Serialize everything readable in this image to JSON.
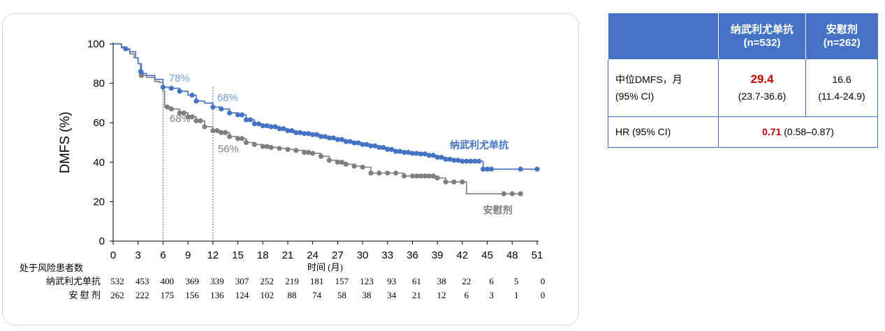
{
  "colors": {
    "treatment": "#4472c4",
    "placebo": "#7f7f7f",
    "treatment_annot": "#6fa0d8",
    "placebo_annot": "#808080",
    "header_bg": "#4472c4",
    "highlight": "#c00000"
  },
  "chart_data": {
    "type": "line",
    "subtype": "kaplan-meier",
    "ylabel": "DMFS (%)",
    "xlabel": "时间 (月)",
    "ylim": [
      0,
      100
    ],
    "xlim": [
      0,
      51
    ],
    "yticks": [
      0,
      20,
      40,
      60,
      80,
      100
    ],
    "xticks": [
      0,
      3,
      6,
      9,
      12,
      15,
      18,
      21,
      24,
      27,
      30,
      33,
      36,
      39,
      42,
      45,
      48,
      51
    ],
    "reference_lines_x": [
      6,
      12
    ],
    "series": [
      {
        "name": "纳武利尤单抗",
        "color_key": "treatment",
        "points": [
          [
            0,
            100
          ],
          [
            1,
            98.5
          ],
          [
            1.5,
            97.5
          ],
          [
            2,
            96
          ],
          [
            2.7,
            93
          ],
          [
            3,
            90
          ],
          [
            3.3,
            86
          ],
          [
            3.6,
            85
          ],
          [
            4,
            84
          ],
          [
            5,
            82
          ],
          [
            6,
            78
          ],
          [
            7,
            77.5
          ],
          [
            8,
            76
          ],
          [
            9,
            74
          ],
          [
            10,
            71
          ],
          [
            11,
            70
          ],
          [
            12,
            68
          ],
          [
            13,
            67
          ],
          [
            14,
            65
          ],
          [
            15,
            64
          ],
          [
            16,
            61.5
          ],
          [
            17,
            59.5
          ],
          [
            18,
            58.5
          ],
          [
            19,
            58
          ],
          [
            20,
            57
          ],
          [
            21,
            56
          ],
          [
            22,
            55
          ],
          [
            23,
            54.5
          ],
          [
            24,
            54
          ],
          [
            25,
            53
          ],
          [
            26,
            52.3
          ],
          [
            27,
            51.5
          ],
          [
            28,
            50.5
          ],
          [
            29,
            49.8
          ],
          [
            30,
            49
          ],
          [
            31,
            48.3
          ],
          [
            32,
            47.5
          ],
          [
            33,
            46.5
          ],
          [
            34,
            45.5
          ],
          [
            35,
            45
          ],
          [
            36,
            44.5
          ],
          [
            37,
            44.2
          ],
          [
            38,
            43.5
          ],
          [
            39,
            42.5
          ],
          [
            40,
            41.5
          ],
          [
            41,
            41
          ],
          [
            42,
            40.5
          ],
          [
            43,
            40.5
          ],
          [
            44,
            40.5
          ],
          [
            44.5,
            40.5
          ],
          [
            44.5,
            36.5
          ],
          [
            47,
            36.5
          ],
          [
            51,
            36.5
          ]
        ],
        "censor_x": [
          1.5,
          3.3,
          6,
          7,
          8,
          9.5,
          10,
          12,
          13,
          14,
          15,
          15.5,
          16,
          16.5,
          17,
          17.5,
          18,
          18.5,
          19,
          19.5,
          20,
          20.5,
          21,
          21.5,
          22,
          22.5,
          23,
          23.5,
          24,
          24.5,
          25,
          25.5,
          26,
          26.5,
          27,
          27.5,
          28,
          28.5,
          29,
          29.5,
          30,
          30.5,
          31,
          31.5,
          32,
          32.5,
          33,
          33.5,
          34,
          34.5,
          35,
          35.5,
          36,
          36.5,
          37,
          37.5,
          38,
          38.5,
          39,
          39.5,
          40,
          40.5,
          41,
          41.5,
          42,
          42.5,
          43,
          43.5,
          44,
          44.5,
          45,
          45.5,
          49,
          51
        ]
      },
      {
        "name": "安慰剂",
        "color_key": "placebo",
        "points": [
          [
            0,
            100
          ],
          [
            1,
            98
          ],
          [
            1.5,
            97
          ],
          [
            2,
            95
          ],
          [
            2.5,
            93
          ],
          [
            3,
            90
          ],
          [
            3.4,
            84
          ],
          [
            4,
            83
          ],
          [
            5,
            81
          ],
          [
            5.5,
            80.5
          ],
          [
            6,
            76
          ],
          [
            6.2,
            68
          ],
          [
            7,
            67
          ],
          [
            8,
            65
          ],
          [
            9,
            63
          ],
          [
            10,
            61
          ],
          [
            11,
            58
          ],
          [
            12,
            56
          ],
          [
            13,
            55
          ],
          [
            14,
            53
          ],
          [
            15,
            52
          ],
          [
            16,
            50
          ],
          [
            17,
            49
          ],
          [
            18,
            48
          ],
          [
            19,
            47.5
          ],
          [
            20,
            47
          ],
          [
            21,
            46.5
          ],
          [
            22,
            46
          ],
          [
            23,
            45
          ],
          [
            24,
            44.5
          ],
          [
            25,
            43
          ],
          [
            26,
            41
          ],
          [
            27,
            40
          ],
          [
            28,
            39
          ],
          [
            29,
            38
          ],
          [
            30,
            37.5
          ],
          [
            31,
            34.5
          ],
          [
            32,
            34.5
          ],
          [
            33,
            34.5
          ],
          [
            34,
            34.5
          ],
          [
            35,
            33
          ],
          [
            36,
            33
          ],
          [
            37,
            33
          ],
          [
            38,
            33
          ],
          [
            39,
            32
          ],
          [
            40,
            30
          ],
          [
            41,
            30
          ],
          [
            42,
            30
          ],
          [
            42.5,
            30
          ],
          [
            42.5,
            24
          ],
          [
            44,
            24
          ],
          [
            46,
            24
          ],
          [
            49,
            24
          ]
        ],
        "censor_x": [
          3.4,
          6.5,
          7,
          8,
          8.5,
          9,
          9.5,
          10,
          10.5,
          11,
          12,
          12.5,
          13,
          13.5,
          14,
          15,
          15.5,
          16,
          17,
          18,
          18.5,
          19,
          20,
          21,
          22,
          23,
          23.5,
          24,
          25,
          26,
          27,
          27.5,
          28,
          29,
          30,
          31,
          32,
          33,
          34,
          35,
          36,
          36.5,
          37,
          37.5,
          38,
          38.5,
          39,
          40,
          41,
          42,
          47,
          48,
          49
        ]
      }
    ],
    "annotations": [
      {
        "text": "78%",
        "x": 6.7,
        "y": 81,
        "color_key": "treatment_annot"
      },
      {
        "text": "68%",
        "x": 12.5,
        "y": 71,
        "color_key": "treatment_annot"
      },
      {
        "text": "68%",
        "x": 6.8,
        "y": 60.5,
        "color_key": "placebo_annot"
      },
      {
        "text": "56%",
        "x": 12.6,
        "y": 45,
        "color_key": "placebo_annot"
      }
    ],
    "series_labels": [
      {
        "text": "纳武利尤单抗",
        "x": 40.5,
        "y": 47,
        "color_key": "treatment"
      },
      {
        "text": "安慰剂",
        "x": 44.5,
        "y": 14,
        "color_key": "placebo"
      }
    ],
    "risk_table": {
      "title": "处于风险患者数",
      "rows": [
        {
          "label": "纳武利尤单抗",
          "values": [
            "532",
            "453",
            "400",
            "369",
            "339",
            "307",
            "252",
            "219",
            "181",
            "157",
            "123",
            "93",
            "61",
            "38",
            "22",
            "6",
            "5",
            "0"
          ]
        },
        {
          "label": "安 慰 剂",
          "values": [
            "262",
            "222",
            "175",
            "156",
            "136",
            "124",
            "102",
            "88",
            "74",
            "58",
            "38",
            "34",
            "21",
            "12",
            "6",
            "3",
            "1",
            "0"
          ]
        }
      ]
    }
  },
  "summary_table": {
    "headers": [
      {
        "line1": "",
        "line2": ""
      },
      {
        "line1": "纳武利尤单抗",
        "line2": "(n=532)"
      },
      {
        "line1": "安慰剂",
        "line2": "(n=262)"
      }
    ],
    "median_row": {
      "label_line1": "中位DMFS，月",
      "label_line2": "(95% CI)",
      "treatment_value": "29.4",
      "treatment_ci": "(23.7-36.6)",
      "placebo_value": "16.6",
      "placebo_ci": "(11.4-24.9)"
    },
    "hr_row": {
      "label": "HR (95% CI)",
      "value": "0.71",
      "ci": "(0.58–0.87)"
    }
  }
}
